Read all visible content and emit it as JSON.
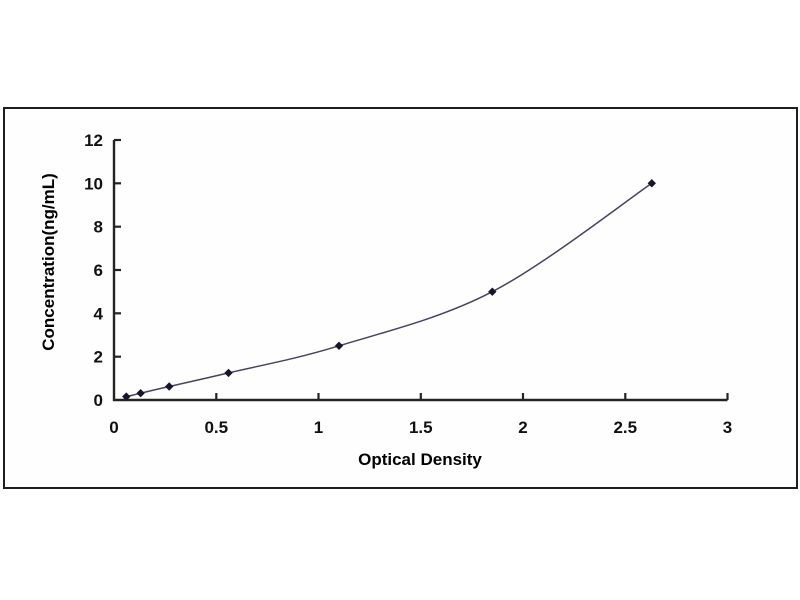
{
  "figure": {
    "background": "#ffffff"
  },
  "chart_data": {
    "type": "line",
    "title": "",
    "xlabel": "Optical Density",
    "ylabel": "Concentration(ng/mL)",
    "x": [
      0.06,
      0.13,
      0.27,
      0.56,
      1.1,
      1.85,
      2.63
    ],
    "y": [
      0.156,
      0.312,
      0.625,
      1.25,
      2.5,
      5,
      10
    ],
    "xlim": [
      0,
      3
    ],
    "ylim": [
      0,
      12
    ],
    "x_ticks": [
      0,
      0.5,
      1,
      1.5,
      2,
      2.5,
      3
    ],
    "x_tick_labels": [
      "0",
      "0.5",
      "1",
      "1.5",
      "2",
      "2.5",
      "3"
    ],
    "y_ticks": [
      0,
      2,
      4,
      6,
      8,
      10,
      12
    ],
    "y_tick_labels": [
      "0",
      "2",
      "4",
      "6",
      "8",
      "10",
      "12"
    ],
    "grid": false,
    "legend": "none",
    "marker_shape": "diamond",
    "colors": {
      "line": "#45455f",
      "marker": "#15152d",
      "axis": "#242424",
      "tick_text": "#111111",
      "frame_border": "#1e1e1e",
      "plot_background": "#fefefe"
    }
  }
}
